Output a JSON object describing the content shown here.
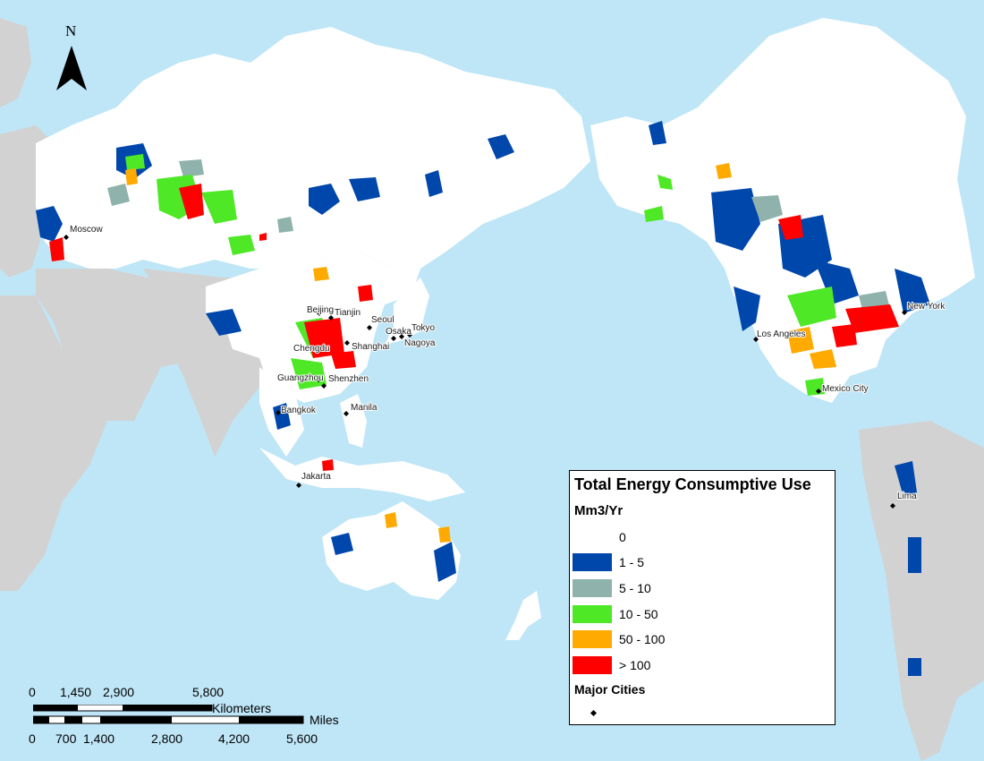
{
  "map": {
    "colors": {
      "ocean": "#bfe6f7",
      "land_other": "#d2d2d2",
      "land_study": "#ffffff",
      "class_1_5": "#0047ab",
      "class_5_10": "#8fb3ac",
      "class_10_50": "#4ee827",
      "class_50_100": "#ffaa00",
      "class_gt_100": "#ff0000"
    },
    "cities": [
      {
        "name": "Moscow"
      },
      {
        "name": "Beijing"
      },
      {
        "name": "Tianjin"
      },
      {
        "name": "Seoul"
      },
      {
        "name": "Tokyo"
      },
      {
        "name": "Osaka"
      },
      {
        "name": "Nagoya"
      },
      {
        "name": "Shanghai"
      },
      {
        "name": "Chengdu"
      },
      {
        "name": "Guangzhou"
      },
      {
        "name": "Shenzhen"
      },
      {
        "name": "Bangkok"
      },
      {
        "name": "Manila"
      },
      {
        "name": "Jakarta"
      },
      {
        "name": "Los Angeles"
      },
      {
        "name": "New York"
      },
      {
        "name": "Mexico City"
      },
      {
        "name": "Lima"
      }
    ]
  },
  "legend": {
    "title": "Total Energy Consumptive Use",
    "units": "Mm3/Yr",
    "classes": [
      {
        "label": "0",
        "color": "#ffffff"
      },
      {
        "label": "1 - 5",
        "color": "#0047ab"
      },
      {
        "label": "5 - 10",
        "color": "#8fb3ac"
      },
      {
        "label": "10 - 50",
        "color": "#4ee827"
      },
      {
        "label": "50 - 100",
        "color": "#ffaa00"
      },
      {
        "label": "> 100",
        "color": "#ff0000"
      }
    ],
    "cities_label": "Major Cities"
  },
  "north_arrow": {
    "label": "N"
  },
  "scale_bar": {
    "km_ticks": [
      "0",
      "1,450",
      "2,900",
      "5,800"
    ],
    "km_unit": "Kilometers",
    "mile_ticks": [
      "0",
      "700",
      "1,400",
      "2,800",
      "4,200",
      "5,600"
    ],
    "mile_unit": "Miles"
  }
}
